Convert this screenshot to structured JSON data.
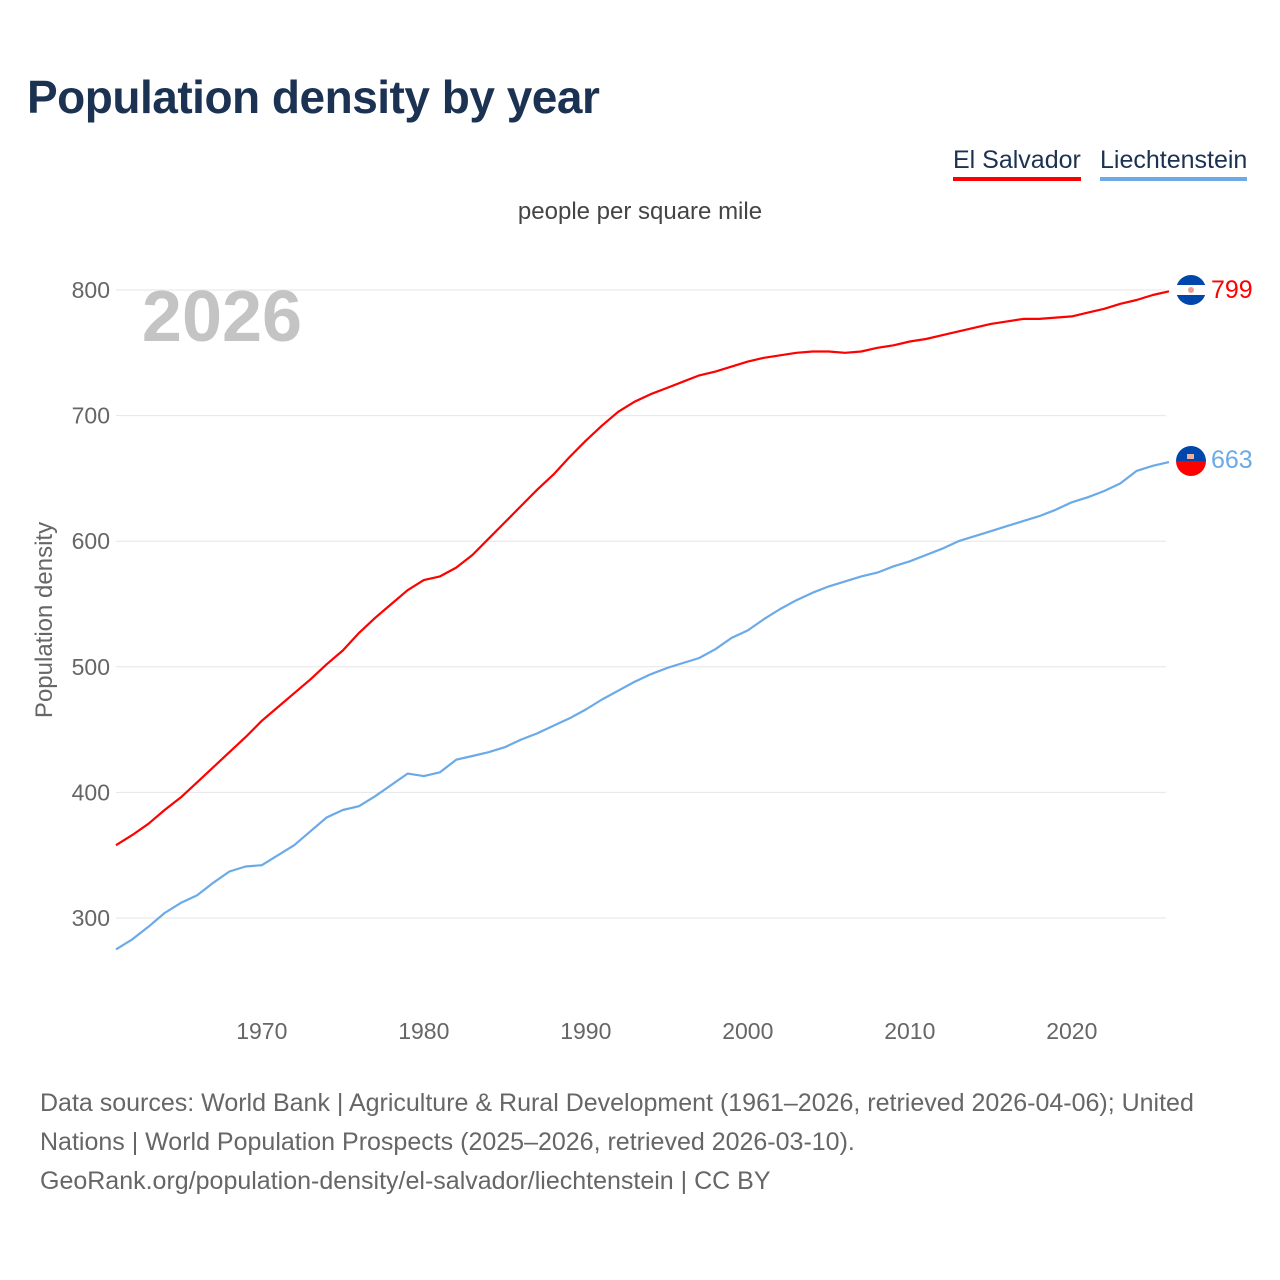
{
  "title": "Population density by year",
  "subtitle": "people per square mile",
  "year_watermark": "2026",
  "footer": {
    "line1": "Data sources: World Bank | Agriculture & Rural Development (1961–2026, retrieved 2026-04-06); United Nations | World Population Prospects (2025–2026, retrieved 2026-03-10).",
    "line2": "GeoRank.org/population-density/el-salvador/liechtenstein | CC BY"
  },
  "chart_data": {
    "type": "line",
    "title": "Population density by year",
    "subtitle": "people per square mile",
    "xlabel": "",
    "ylabel": "Population density",
    "xlim": [
      1961,
      2026
    ],
    "ylim": [
      230,
      830
    ],
    "xticks": [
      1970,
      1980,
      1990,
      2000,
      2010,
      2020
    ],
    "yticks": [
      300,
      400,
      500,
      600,
      700,
      800
    ],
    "grid": true,
    "legend": "top-right",
    "x_start": 1961,
    "series": [
      {
        "name": "El Salvador",
        "color": "#ff0000",
        "end_label": "799",
        "values": [
          358,
          366,
          375,
          386,
          396,
          408,
          420,
          432,
          444,
          457,
          468,
          479,
          490,
          502,
          513,
          527,
          539,
          550,
          561,
          569,
          572,
          579,
          589,
          602,
          615,
          628,
          641,
          653,
          667,
          680,
          692,
          703,
          711,
          717,
          722,
          727,
          732,
          735,
          739,
          743,
          746,
          748,
          750,
          751,
          751,
          750,
          751,
          754,
          756,
          759,
          761,
          764,
          767,
          770,
          773,
          775,
          777,
          777,
          778,
          779,
          782,
          785,
          789,
          792,
          796,
          799
        ]
      },
      {
        "name": "Liechtenstein",
        "color": "#6aaae8",
        "end_label": "663",
        "values": [
          275,
          283,
          293,
          304,
          312,
          318,
          328,
          337,
          341,
          342,
          350,
          358,
          369,
          380,
          386,
          389,
          397,
          406,
          415,
          413,
          416,
          426,
          429,
          432,
          436,
          442,
          447,
          453,
          459,
          466,
          474,
          481,
          488,
          494,
          499,
          503,
          507,
          514,
          523,
          529,
          538,
          546,
          553,
          559,
          564,
          568,
          572,
          575,
          580,
          584,
          589,
          594,
          600,
          604,
          608,
          612,
          616,
          620,
          625,
          631,
          635,
          640,
          646,
          656,
          660,
          663
        ]
      }
    ]
  }
}
